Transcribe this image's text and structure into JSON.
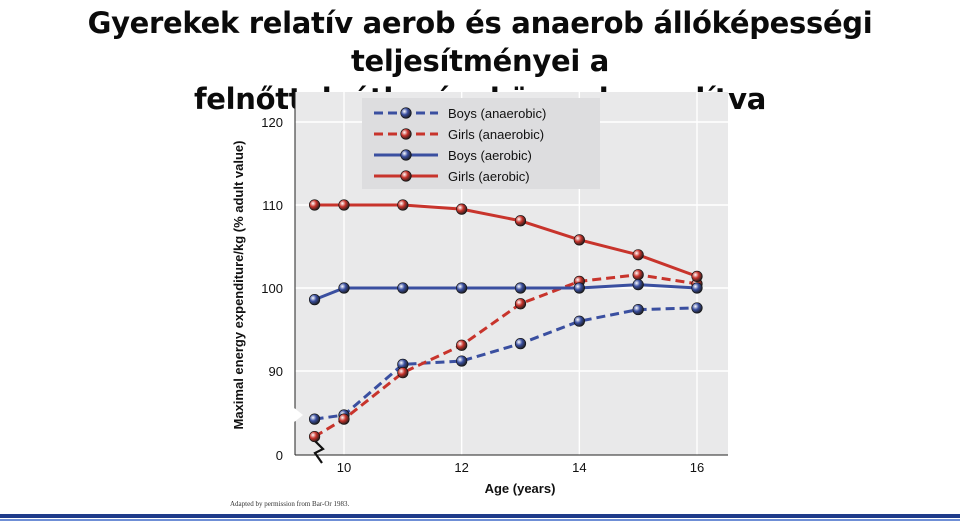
{
  "title": {
    "line1": "Gyerekek relatív aerob és anaerob állóképességi teljesítményei a",
    "line2": "felnőttek átlagával összehasonlítva"
  },
  "credit": "Adapted by permission from Bar-Or 1983.",
  "colors": {
    "boys": "#3a4fa0",
    "girls": "#c8342c",
    "plot_bg": "#e9e9ea",
    "legend_bg": "#dddddf"
  },
  "chart_data": {
    "type": "line",
    "xlabel": "Age (years)",
    "ylabel": "Maximal energy expenditure/kg (% adult value)",
    "xlim": [
      9.3,
      16.5
    ],
    "ylim": [
      80,
      122
    ],
    "axis_break_below": 80,
    "x_ticks": [
      10,
      12,
      14,
      16
    ],
    "y_ticks": [
      90,
      100,
      110,
      120
    ],
    "y_zero_label": "0",
    "legend_position": "top-left",
    "grid": true,
    "series": [
      {
        "name": "Boys (anaerobic)",
        "color_key": "boys",
        "style": "dashed",
        "x": [
          9.5,
          10,
          11,
          12,
          13,
          14,
          15,
          16
        ],
        "y": [
          84.2,
          84.7,
          90.8,
          91.2,
          93.3,
          96.0,
          97.4,
          97.6
        ]
      },
      {
        "name": "Girls (anaerobic)",
        "color_key": "girls",
        "style": "dashed",
        "x": [
          9.5,
          10,
          11,
          12,
          13,
          14,
          15,
          16
        ],
        "y": [
          82.1,
          84.2,
          89.8,
          93.1,
          98.1,
          100.8,
          101.6,
          100.5
        ]
      },
      {
        "name": "Boys (aerobic)",
        "color_key": "boys",
        "style": "solid",
        "x": [
          9.5,
          10,
          11,
          12,
          13,
          14,
          15,
          16
        ],
        "y": [
          98.6,
          100.0,
          100.0,
          100.0,
          100.0,
          100.0,
          100.4,
          100.0
        ]
      },
      {
        "name": "Girls (aerobic)",
        "color_key": "girls",
        "style": "solid",
        "x": [
          9.5,
          10,
          11,
          12,
          13,
          14,
          15,
          16
        ],
        "y": [
          110.0,
          110.0,
          110.0,
          109.5,
          108.1,
          105.8,
          104.0,
          101.4
        ]
      }
    ]
  }
}
